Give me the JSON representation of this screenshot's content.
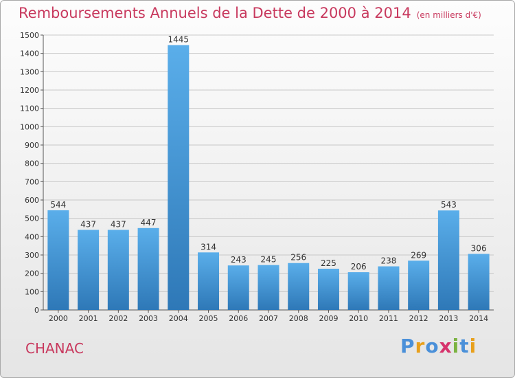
{
  "header": {
    "title": "Remboursements Annuels de la Dette de 2000 à 2014",
    "unit": "(en milliers d'€)"
  },
  "footer": {
    "commune": "CHANAC",
    "logo": "Proxiti"
  },
  "colors": {
    "title": "#c8395e",
    "bar_top": "#5aaeea",
    "bar_bottom": "#2e78b7",
    "logo_letters": [
      "#4a90d9",
      "#e8a01c",
      "#4a90d9",
      "#d6336c",
      "#7cb342",
      "#4a90d9",
      "#e8a01c"
    ]
  },
  "chart_data": {
    "type": "bar",
    "title": "Remboursements Annuels de la Dette de 2000 à 2014",
    "xlabel": "",
    "ylabel": "",
    "categories": [
      "2000",
      "2001",
      "2002",
      "2003",
      "2004",
      "2005",
      "2006",
      "2007",
      "2008",
      "2009",
      "2010",
      "2011",
      "2012",
      "2013",
      "2014"
    ],
    "values": [
      544,
      437,
      437,
      447,
      1445,
      314,
      243,
      245,
      256,
      225,
      206,
      238,
      269,
      543,
      306
    ],
    "ylim": [
      0,
      1500
    ],
    "yticks": [
      0,
      100,
      200,
      300,
      400,
      500,
      600,
      700,
      800,
      900,
      1000,
      1100,
      1200,
      1300,
      1400,
      1500
    ],
    "grid": true,
    "data_labels": true
  }
}
